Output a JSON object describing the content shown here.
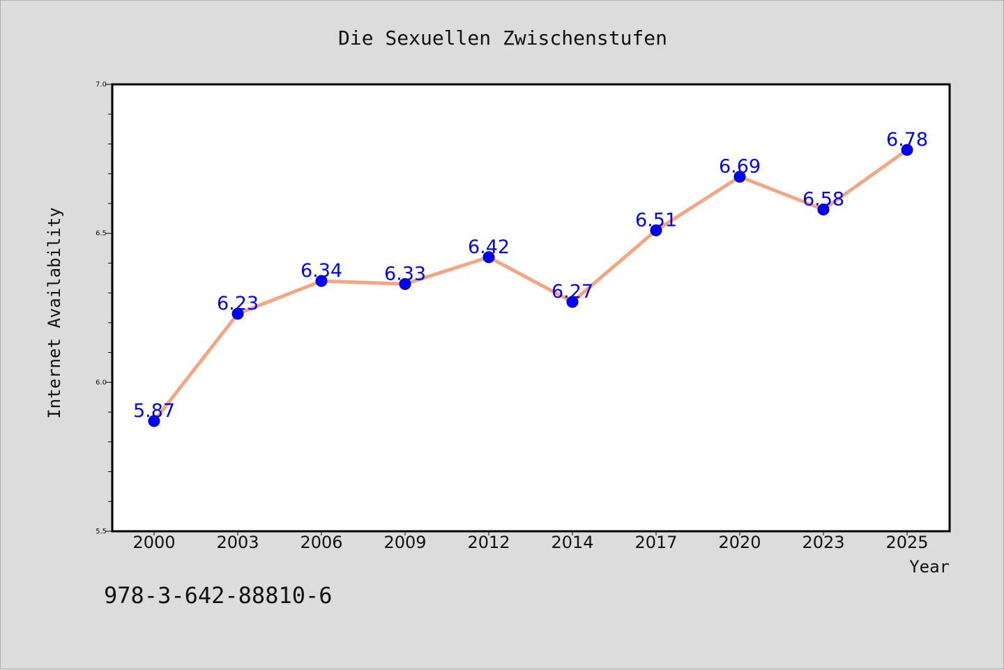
{
  "chart_data": {
    "type": "line",
    "title": "Die Sexuellen Zwischenstufen",
    "xlabel": "Year",
    "ylabel": "Internet Availability",
    "categories": [
      "2000",
      "2003",
      "2006",
      "2009",
      "2012",
      "2014",
      "2017",
      "2020",
      "2023",
      "2025"
    ],
    "series": [
      {
        "values": [
          5.87,
          6.23,
          6.34,
          6.33,
          6.42,
          6.27,
          6.51,
          6.69,
          6.58,
          6.78
        ],
        "data_labels": [
          "5.87",
          "6.23",
          "6.34",
          "6.33",
          "6.42",
          "6.27",
          "6.51",
          "6.69",
          "6.58",
          "6.78"
        ]
      }
    ],
    "ylim": [
      5.5,
      7.0
    ],
    "yticks": [
      "5.5",
      "6.0",
      "6.5",
      "7.0"
    ],
    "grid": false,
    "line_color": "#f4a582",
    "marker_color": "#0000ff",
    "label_color": "#0000ff"
  },
  "annotation": "978-3-642-88810-6"
}
